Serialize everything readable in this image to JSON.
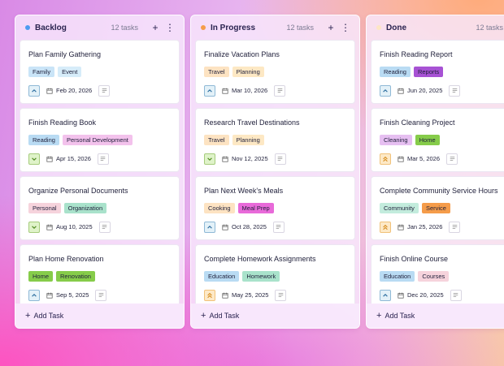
{
  "columns": [
    {
      "title": "Backlog",
      "count": "12 tasks",
      "dot": "#4c9bf0",
      "add_label": "Add Task",
      "cards": [
        {
          "title": "Plan Family Gathering",
          "tags": [
            {
              "label": "Family",
              "color": "#c9e4f7"
            },
            {
              "label": "Event",
              "color": "#d6ecf9"
            }
          ],
          "priority": "up",
          "date": "Feb 20, 2026"
        },
        {
          "title": "Finish Reading Book",
          "tags": [
            {
              "label": "Reading",
              "color": "#b9dbf3"
            },
            {
              "label": "Personal Development",
              "color": "#f3c2ec"
            }
          ],
          "priority": "down",
          "date": "Apr 15, 2026"
        },
        {
          "title": "Organize Personal Documents",
          "tags": [
            {
              "label": "Personal",
              "color": "#f6d3dc"
            },
            {
              "label": "Organization",
              "color": "#a9e2cb"
            }
          ],
          "priority": "down",
          "date": "Aug 10, 2025"
        },
        {
          "title": "Plan Home Renovation",
          "tags": [
            {
              "label": "Home",
              "color": "#86cc4a"
            },
            {
              "label": "Renovation",
              "color": "#86cc4a"
            }
          ],
          "priority": "up",
          "date": "Sep 5, 2025"
        }
      ]
    },
    {
      "title": "In Progress",
      "count": "12 tasks",
      "dot": "#f59c4a",
      "add_label": "Add Task",
      "cards": [
        {
          "title": "Finalize Vacation Plans",
          "tags": [
            {
              "label": "Travel",
              "color": "#fde3c2"
            },
            {
              "label": "Planning",
              "color": "#fde8c4"
            }
          ],
          "priority": "up",
          "date": "Mar 10, 2026"
        },
        {
          "title": "Research Travel Destinations",
          "tags": [
            {
              "label": "Travel",
              "color": "#fde3c2"
            },
            {
              "label": "Planning",
              "color": "#fde8c4"
            }
          ],
          "priority": "down",
          "date": "Nov 12, 2025"
        },
        {
          "title": "Plan Next Week's Meals",
          "tags": [
            {
              "label": "Cooking",
              "color": "#fde3c2"
            },
            {
              "label": "Meal Prep",
              "color": "#e86ad9"
            }
          ],
          "priority": "up",
          "date": "Oct 28, 2025"
        },
        {
          "title": "Complete Homework Assignments",
          "tags": [
            {
              "label": "Education",
              "color": "#b9dbf3"
            },
            {
              "label": "Homework",
              "color": "#a9e2cb"
            }
          ],
          "priority": "dbl",
          "date": "May 25, 2025"
        }
      ]
    },
    {
      "title": "Done",
      "count": "12 tasks",
      "dot": "#fde6c4",
      "add_label": "Add Task",
      "cards": [
        {
          "title": "Finish Reading Report",
          "tags": [
            {
              "label": "Reading",
              "color": "#b9dbf3"
            },
            {
              "label": "Reports",
              "color": "#a752d4"
            }
          ],
          "priority": "up",
          "date": "Jun 20, 2025"
        },
        {
          "title": "Finish Cleaning Project",
          "tags": [
            {
              "label": "Cleaning",
              "color": "#e6bff1"
            },
            {
              "label": "Home",
              "color": "#86cc4a"
            }
          ],
          "priority": "dbl",
          "date": "Mar 5, 2026"
        },
        {
          "title": "Complete Community Service Hours",
          "tags": [
            {
              "label": "Community",
              "color": "#c3ecdd"
            },
            {
              "label": "Service",
              "color": "#f59c4a"
            }
          ],
          "priority": "dbl",
          "date": "Jan 25, 2026"
        },
        {
          "title": "Finish Online Course",
          "tags": [
            {
              "label": "Education",
              "color": "#b9dbf3"
            },
            {
              "label": "Courses",
              "color": "#f6d3dc"
            }
          ],
          "priority": "up",
          "date": "Dec 20, 2025"
        }
      ]
    }
  ]
}
